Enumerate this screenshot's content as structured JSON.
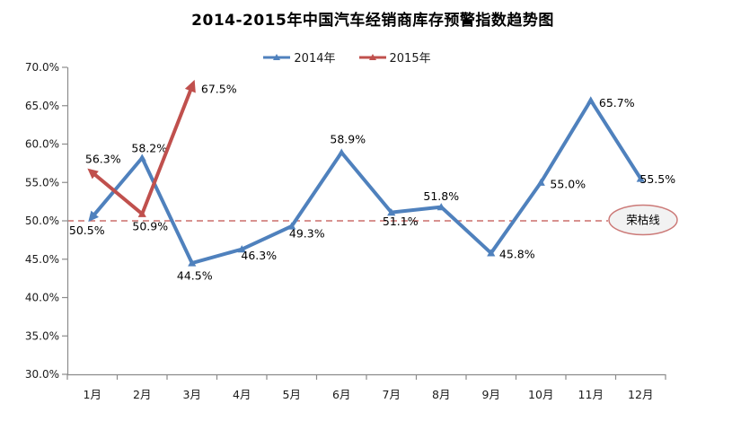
{
  "title": "2014-2015年中国汽车经销商库存预警指数趋势图",
  "legend": [
    {
      "label": "2014年",
      "color": "#4F81BD"
    },
    {
      "label": "2015年",
      "color": "#C0504D"
    }
  ],
  "chart_data": {
    "type": "line",
    "title": "2014-2015年中国汽车经销商库存预警指数趋势图",
    "categories": [
      "1月",
      "2月",
      "3月",
      "4月",
      "5月",
      "6月",
      "7月",
      "8月",
      "9月",
      "10月",
      "11月",
      "12月"
    ],
    "series": [
      {
        "name": "2014年",
        "color": "#4F81BD",
        "values": [
          50.5,
          58.2,
          44.5,
          46.3,
          49.3,
          58.9,
          51.1,
          51.8,
          45.8,
          55.0,
          65.7,
          55.5
        ],
        "labels": [
          "50.5%",
          "58.2%",
          "44.5%",
          "46.3%",
          "49.3%",
          "58.9%",
          "51.1%",
          "51.8%",
          "45.8%",
          "55.0%",
          "65.7%",
          "55.5%"
        ],
        "label_dx": [
          -6,
          8,
          3,
          19,
          17,
          7,
          10,
          0,
          29,
          30,
          29,
          19
        ],
        "label_dy": [
          19.5,
          -6.5,
          18.5,
          11.5,
          12.5,
          -10.5,
          14.5,
          -7.5,
          5.5,
          6,
          7,
          5
        ],
        "start_arrow": true,
        "end_arrow": false
      },
      {
        "name": "2015年",
        "color": "#C0504D",
        "values": [
          56.3,
          50.9,
          67.5
        ],
        "labels": [
          "56.3%",
          "50.9%",
          "67.5%"
        ],
        "label_dx": [
          12,
          9,
          30
        ],
        "label_dy": [
          -10.5,
          18,
          7.2
        ],
        "start_arrow": true,
        "end_arrow": true
      }
    ],
    "xlabel": "",
    "ylabel": "",
    "ylim": [
      30,
      70
    ],
    "ytick_step": 5,
    "ytick_labels": [
      "70.0%",
      "65.0%",
      "60.0%",
      "55.0%",
      "50.0%",
      "45.0%",
      "40.0%",
      "35.0%",
      "30.0%"
    ],
    "grid": false,
    "legend_position": "top-center",
    "axis_color": "#8C8C8C",
    "label_color": "#1a1a1a",
    "threshold": {
      "value": 50,
      "label": "荣枯线",
      "line_color": "#C0504D",
      "ellipse_fill": "#F2F2F2",
      "ellipse_stroke": "#CC7A78"
    }
  }
}
